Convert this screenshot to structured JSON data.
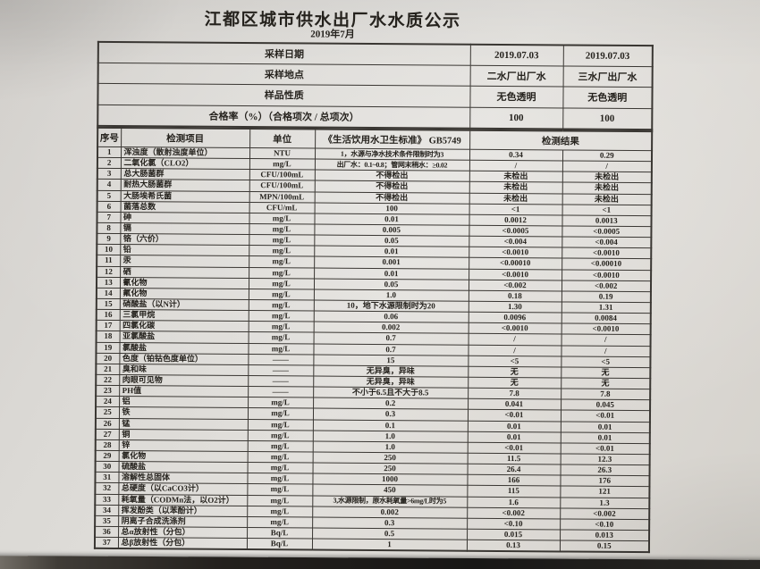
{
  "title": "江都区城市供水出厂水水质公示",
  "subtitle": "2019年7月",
  "info_table": {
    "rows": [
      {
        "label": "采样日期",
        "plant2": "2019.07.03",
        "plant3": "2019.07.03"
      },
      {
        "label": "采样地点",
        "plant2": "二水厂出厂水",
        "plant3": "三水厂出厂水"
      },
      {
        "label": "样品性质",
        "plant2": "无色透明",
        "plant3": "无色透明"
      },
      {
        "label": "合格率（%）（合格项次 / 总项次）",
        "plant2": "100",
        "plant3": "100"
      }
    ]
  },
  "main_table": {
    "headers": {
      "index": "序号",
      "item": "检测项目",
      "unit": "单位",
      "standard": "《生活饮用水卫生标准》  GB5749",
      "result": "检测结果"
    },
    "rows": [
      [
        "1",
        "浑浊度（散射浊度单位）",
        "NTU",
        "1，水源与净水技术条件限制时为3",
        "0.34",
        "0.29"
      ],
      [
        "2",
        "二氧化氯（CLO2）",
        "mg/L",
        "出厂水：0.1~0.8；管网末稍水：≥0.02",
        "/",
        "/"
      ],
      [
        "3",
        "总大肠菌群",
        "CFU/100mL",
        "不得检出",
        "未检出",
        "未检出"
      ],
      [
        "4",
        "耐热大肠菌群",
        "CFU/100mL",
        "不得检出",
        "未检出",
        "未检出"
      ],
      [
        "5",
        "大肠埃希氏菌",
        "MPN/100mL",
        "不得检出",
        "未检出",
        "未检出"
      ],
      [
        "6",
        "菌落总数",
        "CFU/mL",
        "100",
        "<1",
        "<1"
      ],
      [
        "7",
        "砷",
        "mg/L",
        "0.01",
        "0.0012",
        "0.0013"
      ],
      [
        "8",
        "镉",
        "mg/L",
        "0.005",
        "<0.0005",
        "<0.0005"
      ],
      [
        "9",
        "铬（六价）",
        "mg/L",
        "0.05",
        "<0.004",
        "<0.004"
      ],
      [
        "10",
        "铅",
        "mg/L",
        "0.01",
        "<0.0010",
        "<0.0010"
      ],
      [
        "11",
        "汞",
        "mg/L",
        "0.001",
        "<0.00010",
        "<0.00010"
      ],
      [
        "12",
        "硒",
        "mg/L",
        "0.01",
        "<0.0010",
        "<0.0010"
      ],
      [
        "13",
        "氰化物",
        "mg/L",
        "0.05",
        "<0.002",
        "<0.002"
      ],
      [
        "14",
        "氟化物",
        "mg/L",
        "1.0",
        "0.18",
        "0.19"
      ],
      [
        "15",
        "硝酸盐（以N计）",
        "mg/L",
        "10，地下水源限制时为20",
        "1.30",
        "1.31"
      ],
      [
        "16",
        "三氯甲烷",
        "mg/L",
        "0.06",
        "0.0096",
        "0.0084"
      ],
      [
        "17",
        "四氯化碳",
        "mg/L",
        "0.002",
        "<0.0010",
        "<0.0010"
      ],
      [
        "18",
        "亚氯酸盐",
        "mg/L",
        "0.7",
        "/",
        "/"
      ],
      [
        "19",
        "氯酸盐",
        "mg/L",
        "0.7",
        "/",
        "/"
      ],
      [
        "20",
        "色度（铂钴色度单位）",
        "——",
        "15",
        "<5",
        "<5"
      ],
      [
        "21",
        "臭和味",
        "——",
        "无异臭，异味",
        "无",
        "无"
      ],
      [
        "22",
        "肉眼可见物",
        "——",
        "无异臭，异味",
        "无",
        "无"
      ],
      [
        "23",
        "PH值",
        "——",
        "不小于6.5且不大于8.5",
        "7.8",
        "7.8"
      ],
      [
        "24",
        "铝",
        "mg/L",
        "0.2",
        "0.041",
        "0.045"
      ],
      [
        "25",
        "铁",
        "mg/L",
        "0.3",
        "<0.01",
        "<0.01"
      ],
      [
        "26",
        "锰",
        "mg/L",
        "0.1",
        "0.01",
        "0.01"
      ],
      [
        "27",
        "铜",
        "mg/L",
        "1.0",
        "0.01",
        "0.01"
      ],
      [
        "28",
        "锌",
        "mg/L",
        "1.0",
        "<0.01",
        "<0.01"
      ],
      [
        "29",
        "氯化物",
        "mg/L",
        "250",
        "11.5",
        "12.3"
      ],
      [
        "30",
        "硫酸盐",
        "mg/L",
        "250",
        "26.4",
        "26.3"
      ],
      [
        "31",
        "溶解性总固体",
        "mg/L",
        "1000",
        "166",
        "176"
      ],
      [
        "32",
        "总硬度（以CaCO3计）",
        "mg/L",
        "450",
        "115",
        "121"
      ],
      [
        "33",
        "耗氧量（CODMn法，以O2计）",
        "mg/L",
        "3,水源限制，原水耗氧量>6mg/L时为5",
        "1.6",
        "1.3"
      ],
      [
        "34",
        "挥发酚类（以苯酚计）",
        "mg/L",
        "0.002",
        "<0.002",
        "<0.002"
      ],
      [
        "35",
        "阴离子合成洗涤剂",
        "mg/L",
        "0.3",
        "<0.10",
        "<0.10"
      ],
      [
        "36",
        "总α放射性（分包）",
        "Bq/L",
        "0.5",
        "0.015",
        "0.013"
      ],
      [
        "37",
        "总β放射性（分包）",
        "Bq/L",
        "1",
        "0.13",
        "0.15"
      ]
    ]
  },
  "colors": {
    "paper": "#dedcd8",
    "ink": "#26231e",
    "desk": "#1c1a18"
  }
}
